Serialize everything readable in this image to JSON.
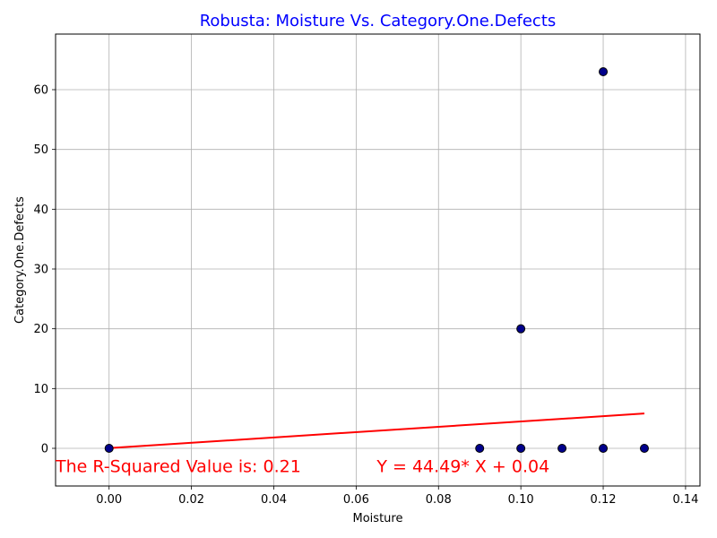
{
  "chart_data": {
    "type": "scatter",
    "title": "Robusta: Moisture Vs. Category.One.Defects",
    "title_color": "#0000ff",
    "xlabel": "Moisture",
    "ylabel": "Category.One.Defects",
    "xlim": [
      -0.013,
      0.1435
    ],
    "ylim": [
      -6.3,
      69.3
    ],
    "xticks": [
      0.0,
      0.02,
      0.04,
      0.06,
      0.08,
      0.1,
      0.12,
      0.14
    ],
    "xtick_labels": [
      "0.00",
      "0.02",
      "0.04",
      "0.06",
      "0.08",
      "0.10",
      "0.12",
      "0.14"
    ],
    "yticks": [
      0,
      10,
      20,
      30,
      40,
      50,
      60
    ],
    "ytick_labels": [
      "0",
      "10",
      "20",
      "30",
      "40",
      "50",
      "60"
    ],
    "grid": true,
    "points": [
      {
        "x": 0.0,
        "y": 0
      },
      {
        "x": 0.09,
        "y": 0
      },
      {
        "x": 0.1,
        "y": 0
      },
      {
        "x": 0.1,
        "y": 20
      },
      {
        "x": 0.11,
        "y": 0
      },
      {
        "x": 0.12,
        "y": 0
      },
      {
        "x": 0.12,
        "y": 63
      },
      {
        "x": 0.13,
        "y": 0
      }
    ],
    "point_color": "#00008b",
    "point_edge_color": "#000000",
    "regression": {
      "slope": 44.49,
      "intercept": 0.04,
      "x_range": [
        0.0,
        0.13
      ],
      "color": "#ff0000"
    },
    "annotations": [
      {
        "text": "The R-Squared Value is: 0.21",
        "x": -0.013,
        "y": -4.0,
        "color": "#ff0000"
      },
      {
        "text": "Y = 44.49* X + 0.04",
        "x": 0.065,
        "y": -4.0,
        "color": "#ff0000"
      }
    ]
  }
}
